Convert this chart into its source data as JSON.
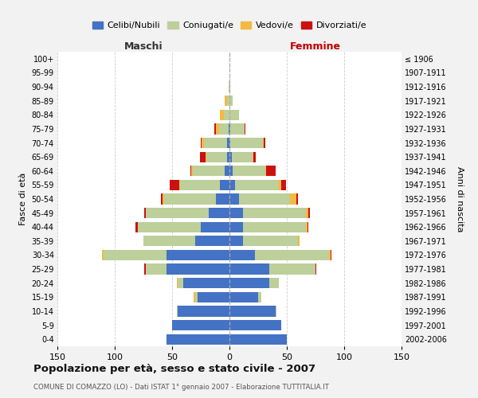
{
  "age_groups_top_to_bottom": [
    "100+",
    "95-99",
    "90-94",
    "85-89",
    "80-84",
    "75-79",
    "70-74",
    "65-69",
    "60-64",
    "55-59",
    "50-54",
    "45-49",
    "40-44",
    "35-39",
    "30-34",
    "25-29",
    "20-24",
    "15-19",
    "10-14",
    "5-9",
    "0-4"
  ],
  "birth_years_top_to_bottom": [
    "≤ 1906",
    "1907-1911",
    "1912-1916",
    "1917-1921",
    "1922-1926",
    "1927-1931",
    "1932-1936",
    "1937-1941",
    "1942-1946",
    "1947-1951",
    "1952-1956",
    "1957-1961",
    "1962-1966",
    "1967-1971",
    "1972-1976",
    "1977-1981",
    "1982-1986",
    "1987-1991",
    "1992-1996",
    "1997-2001",
    "2002-2006"
  ],
  "colors": {
    "celibi": "#4472C4",
    "coniugati": "#BDCF9A",
    "vedovi": "#F4B942",
    "divorziati": "#CC1111"
  },
  "maschi_bottom_to_top": {
    "celibi": [
      55,
      50,
      45,
      28,
      40,
      55,
      55,
      30,
      25,
      18,
      12,
      8,
      4,
      2,
      2,
      1,
      0,
      0,
      0,
      0,
      0
    ],
    "coniugati": [
      0,
      0,
      1,
      2,
      5,
      18,
      55,
      45,
      55,
      55,
      45,
      35,
      28,
      18,
      20,
      8,
      5,
      2,
      1,
      0,
      0
    ],
    "vedovi": [
      0,
      0,
      0,
      1,
      1,
      0,
      1,
      0,
      0,
      0,
      1,
      1,
      1,
      1,
      2,
      3,
      3,
      2,
      0,
      0,
      0
    ],
    "divorziati": [
      0,
      0,
      0,
      0,
      0,
      1,
      0,
      0,
      2,
      1,
      2,
      8,
      1,
      5,
      1,
      1,
      0,
      0,
      0,
      0,
      0
    ]
  },
  "femmine_bottom_to_top": {
    "celibi": [
      50,
      45,
      40,
      25,
      35,
      35,
      22,
      12,
      12,
      12,
      8,
      5,
      3,
      2,
      1,
      1,
      0,
      0,
      0,
      0,
      0
    ],
    "coniugati": [
      0,
      0,
      1,
      3,
      8,
      40,
      65,
      48,
      55,
      55,
      45,
      38,
      28,
      18,
      28,
      12,
      8,
      3,
      1,
      0,
      0
    ],
    "vedovi": [
      0,
      0,
      0,
      0,
      0,
      0,
      1,
      1,
      1,
      2,
      5,
      2,
      1,
      1,
      1,
      0,
      0,
      0,
      0,
      0,
      0
    ],
    "divorziati": [
      0,
      0,
      0,
      0,
      0,
      1,
      1,
      0,
      1,
      1,
      2,
      4,
      8,
      2,
      1,
      1,
      0,
      0,
      0,
      0,
      0
    ]
  },
  "xlim": 150,
  "title": "Popolazione per età, sesso e stato civile - 2007",
  "subtitle": "COMUNE DI COMAZZO (LO) - Dati ISTAT 1° gennaio 2007 - Elaborazione TUTTITALIA.IT",
  "ylabel_left": "Fasce di età",
  "xlabel_maschi": "Maschi",
  "xlabel_femmine": "Femmine",
  "ylabel_right": "Anni di nascita",
  "legend_labels": [
    "Celibi/Nubili",
    "Coniugati/e",
    "Vedovi/e",
    "Divorziati/e"
  ],
  "bg_color": "#F2F2F2",
  "plot_bg_color": "#FFFFFF",
  "grid_color": "#CCCCCC"
}
